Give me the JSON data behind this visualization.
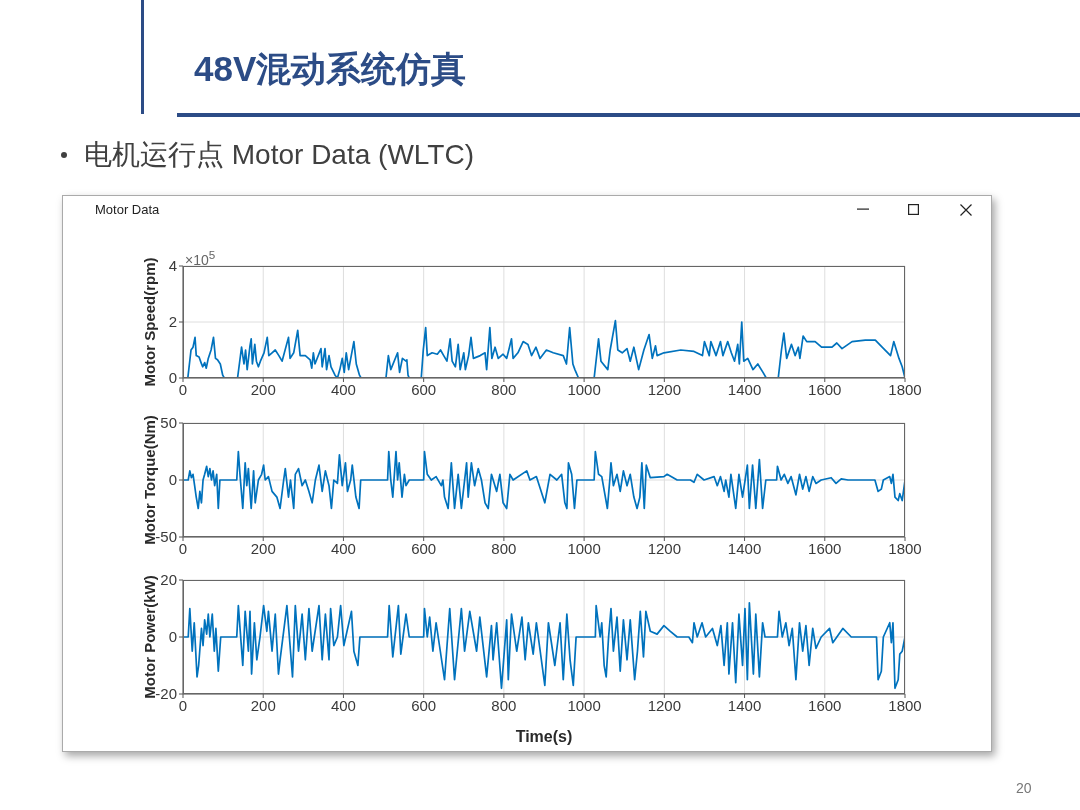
{
  "chart_data": [
    {
      "type": "line",
      "title": "48V混动系统仿真",
      "subtitle": "电机运行点 Motor Data (WLTC)",
      "annotations": [
        "Motor Data",
        "×10$^{5}$"
      ],
      "ylabel": "Motor Speed(rpm)",
      "color": "#0072bd",
      "grid": true,
      "xlim": [
        0,
        1800
      ],
      "xticks": [
        0,
        200,
        400,
        600,
        800,
        1000,
        1200,
        1400,
        1600,
        1800
      ],
      "ylim": [
        0,
        4
      ],
      "yticks": [
        0,
        2,
        4
      ],
      "x": [
        0,
        12,
        20,
        25,
        30,
        33,
        40,
        45,
        49,
        54,
        58,
        63,
        70,
        76,
        81,
        86,
        93,
        99,
        103,
        136,
        146,
        152,
        156,
        160,
        167,
        170,
        173,
        179,
        183,
        188,
        193,
        202,
        210,
        214,
        222,
        230,
        239,
        247,
        263,
        267,
        276,
        286,
        292,
        305,
        317,
        321,
        325,
        329,
        344,
        347,
        354,
        358,
        364,
        369,
        379,
        385,
        391,
        397,
        402,
        407,
        413,
        426,
        432,
        440,
        444,
        506,
        512,
        518,
        535,
        540,
        547,
        556,
        558,
        561,
        564,
        594,
        599,
        605,
        609,
        621,
        634,
        642,
        650,
        658,
        666,
        671,
        679,
        686,
        691,
        700,
        704,
        712,
        718,
        724,
        741,
        753,
        757,
        765,
        770,
        778,
        786,
        798,
        807,
        819,
        823,
        835,
        848,
        860,
        869,
        880,
        890,
        906,
        923,
        948,
        956,
        964,
        972,
        977,
        986,
        1025,
        1036,
        1042,
        1059,
        1065,
        1078,
        1084,
        1095,
        1107,
        1115,
        1124,
        1136,
        1149,
        1162,
        1170,
        1178,
        1182,
        1199,
        1241,
        1274,
        1295,
        1300,
        1312,
        1316,
        1329,
        1340,
        1346,
        1358,
        1367,
        1375,
        1383,
        1387,
        1393,
        1398,
        1408,
        1421,
        1433,
        1446,
        1454,
        1484,
        1492,
        1498,
        1505,
        1517,
        1526,
        1534,
        1538,
        1546,
        1555,
        1576,
        1592,
        1618,
        1630,
        1643,
        1668,
        1701,
        1726,
        1743,
        1764,
        1772,
        1785,
        1793,
        1800
      ],
      "values": [
        0,
        0,
        1.0,
        1.1,
        1.45,
        0.8,
        0.75,
        0.55,
        0.4,
        0.55,
        0.35,
        0.7,
        1.0,
        1.45,
        0.7,
        0.65,
        0.5,
        0.1,
        0,
        0,
        1.1,
        0.5,
        1.0,
        0.3,
        1.15,
        1.4,
        0.5,
        1.2,
        0.6,
        0.4,
        0.6,
        0.9,
        1.45,
        0.8,
        0.9,
        1.0,
        0.8,
        0.6,
        1.45,
        0.7,
        0.9,
        1.7,
        0.8,
        0.8,
        0.65,
        0.35,
        0.9,
        0.5,
        1.05,
        0.4,
        1.05,
        0.3,
        0.8,
        0.4,
        0.1,
        0,
        0.3,
        0.7,
        0.2,
        0.9,
        0.3,
        1.3,
        0.5,
        0.1,
        0,
        0,
        0.8,
        0.3,
        0.9,
        0.2,
        0.7,
        0.6,
        0.65,
        0.1,
        0,
        0,
        1.0,
        1.8,
        0.8,
        0.9,
        0.85,
        1.0,
        0.8,
        0.6,
        1.4,
        0.6,
        0.4,
        1.2,
        0.3,
        0.9,
        0.3,
        0.8,
        1.45,
        0.7,
        0.8,
        0.9,
        0.3,
        1.8,
        0.7,
        1.1,
        0.7,
        0.85,
        0.7,
        1.4,
        0.7,
        0.9,
        1.3,
        1.2,
        0.8,
        1.1,
        0.7,
        1.0,
        0.9,
        0.8,
        0.5,
        1.8,
        0.5,
        0.3,
        0,
        0,
        1.4,
        0.6,
        0.3,
        1.0,
        2.05,
        1.0,
        0.9,
        1.05,
        0.6,
        1.1,
        0.3,
        1.0,
        1.55,
        0.7,
        1.15,
        0.8,
        0.9,
        1.0,
        0.95,
        0.8,
        1.3,
        0.8,
        1.3,
        0.8,
        1.3,
        0.8,
        1.3,
        0.9,
        0.6,
        1.2,
        0.5,
        2.0,
        0.6,
        0.7,
        0.3,
        0.5,
        0.2,
        0,
        0,
        1.0,
        1.6,
        0.7,
        1.2,
        0.8,
        1.1,
        0.7,
        1.5,
        1.3,
        1.3,
        1.1,
        1.1,
        1.25,
        1.05,
        1.3,
        1.35,
        1.35,
        1.1,
        0.8,
        1.3,
        0.7,
        0.4,
        0
      ]
    },
    {
      "type": "line",
      "ylabel": "Motor Torque(Nm)",
      "color": "#0072bd",
      "grid": true,
      "xlim": [
        0,
        1800
      ],
      "xticks": [
        0,
        200,
        400,
        600,
        800,
        1000,
        1200,
        1400,
        1600,
        1800
      ],
      "ylim": [
        -50,
        50
      ],
      "yticks": [
        -50,
        0,
        50
      ],
      "x": [
        0,
        13,
        17,
        21,
        25,
        29,
        33,
        38,
        42,
        46,
        50,
        54,
        59,
        63,
        67,
        71,
        75,
        79,
        84,
        88,
        92,
        134,
        138,
        142,
        149,
        155,
        159,
        163,
        170,
        176,
        180,
        188,
        196,
        201,
        205,
        213,
        222,
        234,
        242,
        251,
        255,
        263,
        268,
        276,
        280,
        288,
        297,
        305,
        314,
        322,
        330,
        339,
        347,
        355,
        364,
        370,
        376,
        385,
        390,
        397,
        405,
        410,
        418,
        422,
        431,
        439,
        443,
        510,
        513,
        518,
        523,
        531,
        535,
        539,
        546,
        552,
        556,
        564,
        600,
        602,
        609,
        619,
        631,
        644,
        648,
        652,
        661,
        669,
        677,
        686,
        694,
        707,
        711,
        719,
        727,
        736,
        744,
        753,
        761,
        769,
        782,
        790,
        798,
        807,
        815,
        823,
        857,
        865,
        881,
        902,
        915,
        932,
        944,
        952,
        957,
        961,
        969,
        976,
        982,
        1025,
        1028,
        1036,
        1044,
        1053,
        1058,
        1064,
        1067,
        1073,
        1082,
        1090,
        1098,
        1107,
        1115,
        1124,
        1132,
        1139,
        1144,
        1150,
        1155,
        1165,
        1199,
        1207,
        1232,
        1265,
        1274,
        1282,
        1299,
        1324,
        1332,
        1340,
        1349,
        1353,
        1361,
        1366,
        1378,
        1386,
        1395,
        1407,
        1412,
        1420,
        1428,
        1437,
        1445,
        1453,
        1480,
        1482,
        1491,
        1499,
        1508,
        1516,
        1528,
        1537,
        1545,
        1553,
        1561,
        1570,
        1578,
        1591,
        1616,
        1628,
        1641,
        1658,
        1725,
        1733,
        1741,
        1746,
        1762,
        1766,
        1770,
        1775,
        1783,
        1787,
        1793,
        1800
      ],
      "values": [
        0,
        0,
        8,
        2,
        5,
        -5,
        -15,
        -25,
        -10,
        -20,
        0,
        5,
        12,
        3,
        10,
        0,
        8,
        -5,
        5,
        -25,
        0,
        0,
        25,
        5,
        -25,
        15,
        -5,
        10,
        -25,
        8,
        -20,
        0,
        5,
        13,
        0,
        3,
        -10,
        -15,
        -25,
        0,
        10,
        -15,
        0,
        -25,
        5,
        10,
        -5,
        0,
        -10,
        -20,
        0,
        13,
        -10,
        8,
        -5,
        -25,
        0,
        -3,
        22,
        -5,
        15,
        -10,
        0,
        13,
        -15,
        -25,
        0,
        0,
        25,
        0,
        -15,
        25,
        0,
        15,
        -15,
        5,
        -5,
        0,
        0,
        25,
        5,
        0,
        3,
        -5,
        0,
        -15,
        -25,
        15,
        -25,
        5,
        -25,
        15,
        -15,
        15,
        -5,
        10,
        0,
        -20,
        -25,
        5,
        -10,
        5,
        -20,
        -25,
        5,
        0,
        8,
        0,
        3,
        -20,
        5,
        0,
        5,
        -20,
        -25,
        15,
        5,
        -25,
        0,
        0,
        25,
        5,
        3,
        -15,
        -25,
        0,
        15,
        -5,
        5,
        -10,
        8,
        -5,
        5,
        -15,
        -25,
        -15,
        15,
        -25,
        13,
        2,
        3,
        5,
        0,
        0,
        -2,
        5,
        0,
        3,
        -5,
        3,
        -10,
        0,
        -15,
        5,
        -25,
        5,
        -15,
        13,
        -25,
        13,
        -25,
        18,
        -25,
        0,
        0,
        12,
        0,
        5,
        -3,
        3,
        -13,
        5,
        -8,
        3,
        -10,
        3,
        -3,
        0,
        2,
        -3,
        1,
        0,
        0,
        -10,
        -8,
        0,
        3,
        -3,
        5,
        -15,
        -18,
        -12,
        -18,
        0
      ]
    },
    {
      "type": "line",
      "ylabel": "Motor Power(kW)",
      "xlabel": "Time(s)",
      "annotations": [
        "20"
      ],
      "color": "#0072bd",
      "grid": true,
      "xlim": [
        0,
        1800
      ],
      "xticks": [
        0,
        200,
        400,
        600,
        800,
        1000,
        1200,
        1400,
        1600,
        1800
      ],
      "ylim": [
        -20,
        20
      ],
      "yticks": [
        -20,
        0,
        20
      ],
      "x": [
        0,
        13,
        17,
        23,
        28,
        35,
        39,
        46,
        50,
        54,
        59,
        63,
        67,
        73,
        78,
        82,
        88,
        94,
        134,
        138,
        149,
        155,
        163,
        167,
        171,
        178,
        184,
        192,
        201,
        209,
        213,
        222,
        230,
        238,
        242,
        259,
        268,
        273,
        280,
        288,
        297,
        305,
        314,
        322,
        339,
        347,
        355,
        364,
        368,
        376,
        385,
        393,
        401,
        420,
        426,
        436,
        441,
        510,
        514,
        523,
        537,
        543,
        556,
        564,
        600,
        602,
        609,
        615,
        623,
        631,
        652,
        665,
        677,
        694,
        702,
        715,
        732,
        740,
        757,
        769,
        773,
        782,
        794,
        807,
        811,
        819,
        832,
        845,
        853,
        861,
        873,
        881,
        902,
        911,
        927,
        940,
        948,
        957,
        965,
        973,
        980,
        1028,
        1030,
        1040,
        1044,
        1050,
        1055,
        1061,
        1067,
        1073,
        1082,
        1090,
        1098,
        1107,
        1115,
        1126,
        1133,
        1140,
        1148,
        1154,
        1165,
        1182,
        1199,
        1215,
        1232,
        1261,
        1270,
        1274,
        1282,
        1294,
        1303,
        1320,
        1332,
        1341,
        1349,
        1357,
        1361,
        1370,
        1378,
        1386,
        1395,
        1401,
        1407,
        1412,
        1422,
        1428,
        1437,
        1445,
        1451,
        1482,
        1486,
        1494,
        1503,
        1511,
        1519,
        1528,
        1537,
        1545,
        1553,
        1561,
        1570,
        1578,
        1591,
        1612,
        1620,
        1645,
        1666,
        1729,
        1733,
        1741,
        1746,
        1762,
        1766,
        1770,
        1775,
        1783,
        1787,
        1793,
        1800
      ],
      "values": [
        0,
        0,
        10,
        -5,
        5,
        -14,
        -10,
        3,
        -3,
        6,
        1,
        8,
        0,
        8,
        -5,
        3,
        -12,
        0,
        0,
        11,
        -10,
        9,
        -5,
        9,
        -13,
        5,
        -8,
        0,
        11,
        2,
        9,
        -5,
        8,
        -13,
        -8,
        11,
        -5,
        -14,
        11,
        -5,
        8,
        -8,
        10,
        -5,
        11,
        -8,
        8,
        -8,
        10,
        -3,
        0,
        11,
        -3,
        9,
        -5,
        -10,
        0,
        0,
        11,
        -7,
        11,
        -6,
        8,
        0,
        0,
        10,
        0,
        7,
        -5,
        5,
        -15,
        10,
        -15,
        10,
        -5,
        9,
        -5,
        7,
        -14,
        4,
        -8,
        5,
        -18,
        6,
        -15,
        8,
        -5,
        7,
        -8,
        5,
        -6,
        5,
        -17,
        5,
        -10,
        5,
        -15,
        8,
        -8,
        -17,
        0,
        0,
        11,
        0,
        5,
        -10,
        -14,
        0,
        10,
        -5,
        7,
        -12,
        6,
        -8,
        6,
        -15,
        -5,
        9,
        -7,
        9,
        2,
        1,
        4,
        2,
        0,
        0,
        -2,
        5,
        0,
        5,
        0,
        3,
        -3,
        4,
        -10,
        5,
        -13,
        5,
        -16,
        8,
        -10,
        10,
        -15,
        12,
        -13,
        8,
        -14,
        5,
        0,
        0,
        9,
        0,
        5,
        -3,
        3,
        -15,
        5,
        -5,
        4,
        -10,
        3,
        -4,
        0,
        3,
        -2,
        3,
        0,
        0,
        -15,
        -12,
        0,
        5,
        -2,
        5,
        -18,
        -15,
        -6,
        -5,
        0
      ]
    }
  ]
}
